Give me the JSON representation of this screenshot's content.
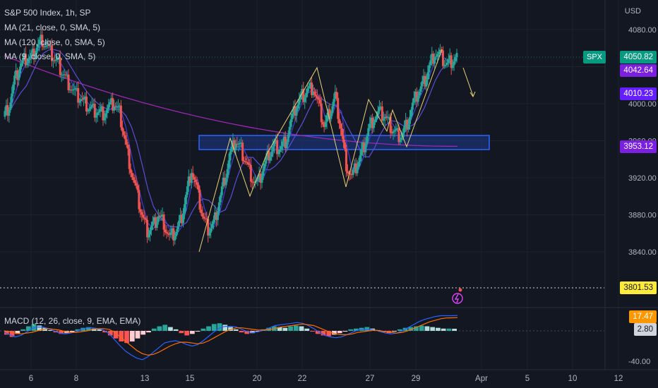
{
  "header": {
    "title": "S&P 500 Index, 1h, SP",
    "currency": "USD",
    "ma1": "MA (21, close, 0, SMA, 5)",
    "ma2": "MA (120, close, 0, SMA, 5)",
    "ma3": "MA (9, close, 0, SMA, 5)",
    "macd": "MACD (12, 26, close, 9, EMA, EMA)"
  },
  "price_tags": {
    "symbol": "SPX",
    "last": "4050.82",
    "ma9": "4042.64",
    "ma21": "4010.23",
    "ma120": "3953.12",
    "hline": "3801.53",
    "macd_signal": "17.47",
    "macd_hist": "2.80"
  },
  "colors": {
    "background": "#131722",
    "up": "#26a69a",
    "down": "#ef5350",
    "ma9": "#3d3dd8",
    "ma21": "#5a4fd6",
    "ma120": "#9c27b0",
    "zone": "#1e3a8a",
    "drawing": "#e8d174",
    "macd_line": "#2962ff",
    "signal_line": "#ff6d00",
    "last_tag": "#089981",
    "ma_tag": "#7b1fe0",
    "hline_tag": "#ffeb3b",
    "signal_tag": "#ff9800"
  },
  "chart_data": [
    {
      "type": "candlestick",
      "title": "S&P 500 Index, 1h, SP",
      "ylabel": "USD",
      "ylim": [
        3800,
        4090
      ],
      "y_ticks": [
        3840,
        3880,
        3920,
        3960,
        4000,
        4040,
        4080
      ],
      "x_ticks": [
        "6",
        "8",
        "13",
        "15",
        "20",
        "22",
        "27",
        "29",
        "Apr",
        "5",
        "10",
        "12"
      ],
      "series": [
        {
          "name": "MA (9, close, 0, SMA, 5)",
          "last": 4042.64
        },
        {
          "name": "MA (21, close, 0, SMA, 5)",
          "last": 4010.23
        },
        {
          "name": "MA (120, close, 0, SMA, 5)",
          "last": 3953.12
        }
      ],
      "close_path": [
        [
          0,
          3986
        ],
        [
          1,
          3998
        ],
        [
          2,
          4024
        ],
        [
          3,
          4040
        ],
        [
          4,
          4048
        ],
        [
          5,
          4050
        ],
        [
          6,
          4062
        ],
        [
          7,
          4070
        ],
        [
          8,
          4060
        ],
        [
          9,
          4050
        ],
        [
          10,
          4042
        ],
        [
          11,
          4030
        ],
        [
          12,
          4020
        ],
        [
          13,
          4010
        ],
        [
          14,
          4005
        ],
        [
          15,
          3998
        ],
        [
          16,
          3994
        ],
        [
          17,
          3992
        ],
        [
          18,
          3990
        ],
        [
          19,
          3996
        ],
        [
          20,
          4000
        ],
        [
          21,
          3990
        ],
        [
          22,
          3960
        ],
        [
          23,
          3930
        ],
        [
          24,
          3905
        ],
        [
          25,
          3880
        ],
        [
          26,
          3862
        ],
        [
          27,
          3868
        ],
        [
          28,
          3880
        ],
        [
          29,
          3872
        ],
        [
          30,
          3855
        ],
        [
          31,
          3860
        ],
        [
          32,
          3872
        ],
        [
          33,
          3900
        ],
        [
          34,
          3930
        ],
        [
          35,
          3906
        ],
        [
          36,
          3878
        ],
        [
          37,
          3864
        ],
        [
          38,
          3870
        ],
        [
          39,
          3895
        ],
        [
          40,
          3920
        ],
        [
          41,
          3945
        ],
        [
          42,
          3960
        ],
        [
          43,
          3950
        ],
        [
          44,
          3935
        ],
        [
          45,
          3920
        ],
        [
          46,
          3912
        ],
        [
          47,
          3930
        ],
        [
          48,
          3945
        ],
        [
          49,
          3955
        ],
        [
          50,
          3952
        ],
        [
          51,
          3960
        ],
        [
          52,
          3980
        ],
        [
          53,
          3998
        ],
        [
          54,
          4008
        ],
        [
          55,
          4015
        ],
        [
          56,
          4018
        ],
        [
          57,
          3998
        ],
        [
          58,
          3975
        ],
        [
          59,
          3990
        ],
        [
          60,
          4008
        ],
        [
          61,
          3975
        ],
        [
          62,
          3935
        ],
        [
          63,
          3920
        ],
        [
          64,
          3935
        ],
        [
          65,
          3950
        ],
        [
          66,
          3972
        ],
        [
          67,
          3985
        ],
        [
          68,
          3990
        ],
        [
          69,
          3986
        ],
        [
          70,
          3975
        ],
        [
          71,
          3968
        ],
        [
          72,
          3965
        ],
        [
          73,
          3980
        ],
        [
          74,
          3998
        ],
        [
          75,
          4012
        ],
        [
          76,
          4022
        ],
        [
          77,
          4040
        ],
        [
          78,
          4055
        ],
        [
          79,
          4052
        ],
        [
          80,
          4042
        ],
        [
          81,
          4045
        ],
        [
          82,
          4050
        ]
      ],
      "hline": 3801.53,
      "zone": [
        3953,
        3965
      ]
    },
    {
      "type": "bar",
      "title": "MACD (12, 26, close, 9, EMA, EMA)",
      "ylim": [
        -42,
        27
      ],
      "y_ticks": [
        -40.0
      ],
      "histogram": [
        -5,
        -8,
        -4,
        2,
        6,
        9,
        7,
        4,
        1,
        -2,
        -4,
        -3,
        -2,
        2,
        4,
        5,
        3,
        2,
        -2,
        -6,
        -10,
        -14,
        -16,
        -14,
        -10,
        -5,
        -2,
        3,
        6,
        8,
        5,
        2,
        -3,
        -6,
        -4,
        -1,
        3,
        6,
        9,
        10,
        8,
        5,
        2,
        -2,
        -4,
        -3,
        -1,
        2,
        4,
        6,
        5,
        4,
        6,
        7,
        6,
        3,
        -1,
        -4,
        -6,
        -7,
        -5,
        -3,
        -1,
        2,
        3,
        4,
        5,
        3,
        1,
        -2,
        -3,
        -1,
        2,
        4,
        5,
        6,
        7,
        6,
        5,
        4,
        3,
        3,
        2.8
      ],
      "macd_line": [
        -2,
        -5,
        -8,
        -6,
        -2,
        3,
        5,
        5,
        3,
        0,
        -3,
        -4,
        -3,
        -1,
        2,
        4,
        4,
        3,
        1,
        -4,
        -12,
        -20,
        -27,
        -32,
        -36,
        -38,
        -34,
        -28,
        -22,
        -16,
        -14,
        -13,
        -15,
        -18,
        -20,
        -18,
        -13,
        -7,
        -1,
        4,
        6,
        6,
        5,
        2,
        -1,
        -2,
        -1,
        1,
        4,
        7,
        8,
        9,
        10,
        11,
        10,
        7,
        3,
        -2,
        -6,
        -8,
        -9,
        -8,
        -5,
        -2,
        1,
        2,
        2,
        1,
        -1,
        -3,
        -4,
        -3,
        0,
        4,
        8,
        12,
        15,
        17,
        19,
        20,
        20,
        20,
        20.3
      ],
      "signal_line": [
        0,
        -1,
        -3,
        -4,
        -3,
        -2,
        0,
        2,
        3,
        2,
        1,
        -1,
        -2,
        -2,
        -1,
        0,
        2,
        3,
        3,
        2,
        -2,
        -8,
        -14,
        -20,
        -26,
        -30,
        -32,
        -31,
        -28,
        -24,
        -20,
        -17,
        -15,
        -15,
        -16,
        -17,
        -16,
        -13,
        -9,
        -5,
        -1,
        2,
        4,
        4,
        3,
        2,
        1,
        1,
        2,
        3,
        5,
        6,
        7,
        8,
        9,
        8,
        7,
        4,
        1,
        -2,
        -4,
        -5,
        -5,
        -4,
        -2,
        -1,
        0,
        1,
        0,
        -1,
        -2,
        -3,
        -2,
        0,
        3,
        6,
        9,
        12,
        14,
        16,
        17,
        17.2,
        17.47
      ]
    }
  ]
}
